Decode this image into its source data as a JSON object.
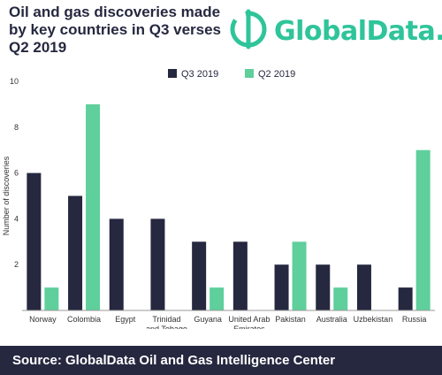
{
  "header": {
    "title": "Oil and gas discoveries made\nby key countries in Q3 verses\nQ2 2019",
    "logo_text": "GlobalData."
  },
  "colors": {
    "q3": "#262840",
    "q2": "#5fcf9c",
    "brand": "#2fc49a",
    "footer_bg": "#262840"
  },
  "footer": {
    "source": "Source:  GlobalData Oil and Gas Intelligence Center"
  },
  "chart_data": {
    "type": "bar",
    "title": "Oil and gas discoveries made by key countries in Q3 verses Q2 2019",
    "ylabel": "Number of discoveries",
    "xlabel": "",
    "ylim": [
      0,
      10
    ],
    "yticks": [
      2,
      4,
      6,
      8,
      10
    ],
    "legend_position": "top",
    "categories": [
      "Norway",
      "Colombia",
      "Egypt",
      "Trinidad\nand Tobago",
      "Guyana",
      "United Arab\nEmirates",
      "Pakistan",
      "Australia",
      "Uzbekistan",
      "Russia"
    ],
    "series": [
      {
        "name": "Q3 2019",
        "color": "#262840",
        "values": [
          6,
          5,
          4,
          4,
          3,
          3,
          2,
          2,
          2,
          1
        ]
      },
      {
        "name": "Q2 2019",
        "color": "#5fcf9c",
        "values": [
          1,
          9,
          0,
          0,
          1,
          0,
          3,
          1,
          0,
          7
        ]
      }
    ]
  }
}
